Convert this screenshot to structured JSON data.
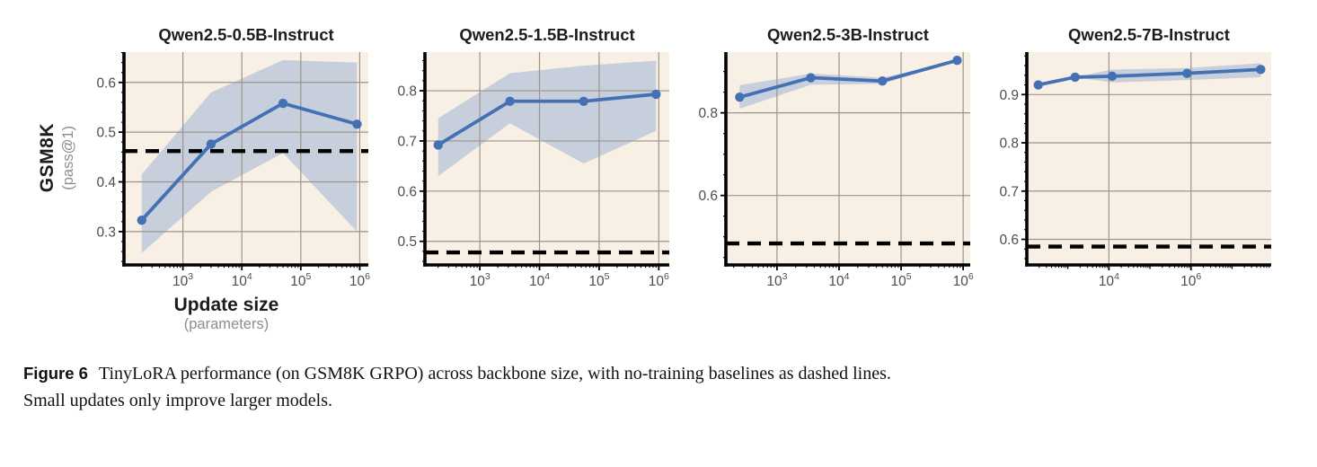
{
  "figure": {
    "ylabel": "GSM8K",
    "ylabel_sub": "(pass@1)",
    "xlabel": "Update size",
    "xlabel_sub": "(parameters)"
  },
  "caption": {
    "label": "Figure 6",
    "text": "TinyLoRA performance (on GSM8K GRPO) across backbone size, with no-training baselines as dashed lines.",
    "text2": "Small updates only improve larger models."
  },
  "colors": {
    "plot_bg": "#f9f0e5",
    "band": "#98add4",
    "line": "#4470b4",
    "grid": "#9b948c",
    "baseline": "#000000",
    "spine": "#000000",
    "tick_label": "#4d4d4d",
    "title": "#1c1c1c"
  },
  "chart_data": [
    {
      "type": "line",
      "title": "Qwen2.5-0.5B-Instruct",
      "xscale": "log",
      "x": [
        200,
        3000,
        50000,
        900000
      ],
      "y": [
        0.323,
        0.476,
        0.558,
        0.516
      ],
      "band_upper": [
        0.415,
        0.58,
        0.645,
        0.64
      ],
      "band_lower": [
        0.257,
        0.38,
        0.458,
        0.3
      ],
      "baseline": 0.462,
      "xlim": [
        100,
        1400000
      ],
      "ylim": [
        0.233,
        0.661
      ],
      "yticks": [
        0.3,
        0.4,
        0.5,
        0.6
      ],
      "ytick_labels": [
        "0.3",
        "0.4",
        "0.5",
        "0.6"
      ],
      "xtick_exponents": [
        3,
        4,
        5,
        6
      ],
      "y_minor_step": 0.02
    },
    {
      "type": "line",
      "title": "Qwen2.5-1.5B-Instruct",
      "xscale": "log",
      "x": [
        200,
        3200,
        55000,
        900000
      ],
      "y": [
        0.692,
        0.779,
        0.779,
        0.793
      ],
      "band_upper": [
        0.745,
        0.835,
        0.85,
        0.86
      ],
      "band_lower": [
        0.63,
        0.735,
        0.655,
        0.72
      ],
      "baseline": 0.478,
      "xlim": [
        120,
        1500000
      ],
      "ylim": [
        0.453,
        0.877
      ],
      "yticks": [
        0.5,
        0.6,
        0.7,
        0.8
      ],
      "ytick_labels": [
        "0.5",
        "0.6",
        "0.7",
        "0.8"
      ],
      "xtick_exponents": [
        3,
        4,
        5,
        6
      ],
      "y_minor_step": 0.02
    },
    {
      "type": "line",
      "title": "Qwen2.5-3B-Instruct",
      "xscale": "log",
      "x": [
        250,
        3500,
        50000,
        800000
      ],
      "y": [
        0.838,
        0.885,
        0.877,
        0.927
      ],
      "band_upper": [
        0.867,
        0.895,
        0.885,
        0.927
      ],
      "band_lower": [
        0.81,
        0.868,
        0.87,
        0.927
      ],
      "baseline": 0.484,
      "xlim": [
        150,
        1300000
      ],
      "ylim": [
        0.432,
        0.947
      ],
      "yticks": [
        0.6,
        0.8
      ],
      "ytick_labels": [
        "0.6",
        "0.8"
      ],
      "xtick_exponents": [
        3,
        4,
        5,
        6
      ],
      "y_minor_step": 0.05
    },
    {
      "type": "line",
      "title": "Qwen2.5-7B-Instruct",
      "xscale": "log",
      "x": [
        190,
        1500,
        12000,
        800000,
        50000000
      ],
      "y": [
        0.92,
        0.936,
        0.938,
        0.944,
        0.952
      ],
      "band_upper": [
        0.92,
        0.936,
        0.952,
        0.955,
        0.965
      ],
      "band_lower": [
        0.92,
        0.936,
        0.925,
        0.93,
        0.936
      ],
      "baseline": 0.585,
      "xlim": [
        100,
        90000000
      ],
      "ylim": [
        0.547,
        0.988
      ],
      "yticks": [
        0.6,
        0.7,
        0.8,
        0.9
      ],
      "ytick_labels": [
        "0.6",
        "0.7",
        "0.8",
        "0.9"
      ],
      "xtick_exponents": [
        4,
        6
      ],
      "y_minor_step": 0.02
    }
  ]
}
